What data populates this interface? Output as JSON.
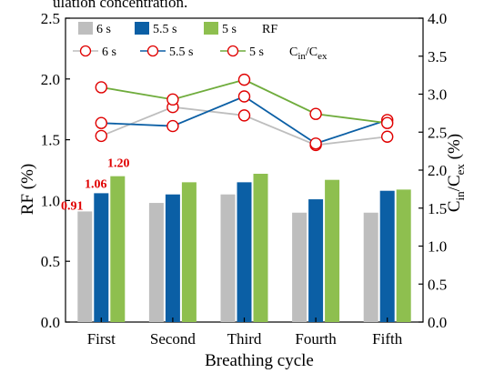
{
  "caption_fragment": "ulation concentration.",
  "chart_data": {
    "type": "bar",
    "categories": [
      "First",
      "Second",
      "Third",
      "Fourth",
      "Fifth"
    ],
    "xlabel": "Breathing cycle",
    "ylabel": "RF (%)",
    "y2label_main": "C",
    "y2label_sub1": "in",
    "y2label_mid": "/C",
    "y2label_sub2": "ex",
    "y2label_tail": " (%)",
    "ylim": [
      0,
      2.5
    ],
    "y2lim": [
      0,
      4.0
    ],
    "yticks": [
      "0.0",
      "0.5",
      "1.0",
      "1.5",
      "2.0",
      "2.5"
    ],
    "y2ticks": [
      "0.0",
      "0.5",
      "1.0",
      "1.5",
      "2.0",
      "2.5",
      "3.0",
      "3.5",
      "4.0"
    ],
    "grid": false,
    "legend_placement": "top-left",
    "legend_rf_label": "RF",
    "legend_c_main": "C",
    "legend_c_sub1": "in",
    "legend_c_mid": "/C",
    "legend_c_sub2": "ex",
    "bar_series": [
      {
        "name": "6 s",
        "color": "#bebebe",
        "values": [
          0.91,
          0.98,
          1.05,
          0.9,
          0.9
        ]
      },
      {
        "name": "5.5 s",
        "color": "#0b5fa5",
        "values": [
          1.06,
          1.05,
          1.15,
          1.01,
          1.08
        ]
      },
      {
        "name": "5 s",
        "color": "#8ebf4f",
        "values": [
          1.2,
          1.15,
          1.22,
          1.17,
          1.09
        ]
      }
    ],
    "line_series": [
      {
        "name": "6 s",
        "color": "#bebebe",
        "axis": "right",
        "values": [
          2.45,
          2.83,
          2.72,
          2.33,
          2.44
        ]
      },
      {
        "name": "5.5 s",
        "color": "#0b5fa5",
        "axis": "right",
        "values": [
          2.62,
          2.58,
          2.97,
          2.35,
          2.66
        ]
      },
      {
        "name": "5 s",
        "color": "#6fac3c",
        "axis": "right",
        "values": [
          3.09,
          2.93,
          3.19,
          2.74,
          2.62
        ]
      }
    ],
    "marker_color": "#e00000",
    "data_labels": [
      "0.91",
      "1.06",
      "1.20"
    ]
  }
}
